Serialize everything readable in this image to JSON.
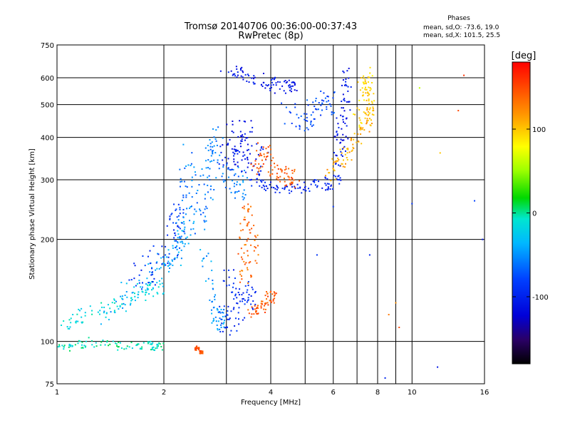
{
  "chart_data": {
    "type": "scatter",
    "title": "Tromsø 20140706 00:36:00-00:37:43",
    "subtitle": "RwPretec (8p)",
    "xlabel": "Frequency [MHz]",
    "ylabel": "Stationary phase Virtual Height [km]",
    "xscale": "log",
    "yscale": "log",
    "xlim": [
      1,
      16
    ],
    "ylim": [
      75,
      750
    ],
    "xticks": [
      1,
      2,
      4,
      6,
      8,
      10,
      16
    ],
    "xgrid": [
      2,
      3,
      4,
      5,
      6,
      7,
      8,
      9,
      10
    ],
    "yticks": [
      75,
      100,
      200,
      300,
      400,
      500,
      600,
      750
    ],
    "grid": true,
    "stats": {
      "header": "Phases",
      "line1": "mean, sd,O: -73.6, 19.0",
      "line2": "mean, sd,X: 101.5, 25.5"
    },
    "colorbar": {
      "label": "[deg]",
      "range": [
        -180,
        180
      ],
      "ticks": [
        {
          "value": 100,
          "label": "100"
        },
        {
          "value": 0,
          "label": "0"
        },
        {
          "value": -100,
          "label": "-100"
        }
      ]
    },
    "series": [
      {
        "phase": -10,
        "spread_f": 0.05,
        "spread_h": 0.03,
        "points": [
          [
            1.0,
            95
          ],
          [
            1.1,
            96
          ],
          [
            1.2,
            100
          ],
          [
            1.4,
            98
          ],
          [
            1.6,
            96
          ],
          [
            1.7,
            98
          ],
          [
            1.9,
            97
          ]
        ]
      },
      {
        "phase": -20,
        "spread_f": 0.06,
        "spread_h": 0.05,
        "points": [
          [
            1.05,
            112
          ],
          [
            1.15,
            116
          ],
          [
            1.3,
            122
          ],
          [
            1.45,
            126
          ],
          [
            1.6,
            132
          ],
          [
            1.75,
            140
          ],
          [
            1.9,
            145
          ]
        ]
      },
      {
        "phase": -45,
        "spread_f": 0.06,
        "spread_h": 0.08,
        "points": [
          [
            1.4,
            120
          ],
          [
            1.6,
            140
          ],
          [
            1.8,
            150
          ],
          [
            1.95,
            165
          ],
          [
            2.1,
            175
          ],
          [
            2.2,
            190
          ],
          [
            2.3,
            210
          ]
        ]
      },
      {
        "phase": -90,
        "spread_f": 0.05,
        "spread_h": 0.1,
        "points": [
          [
            1.6,
            150
          ],
          [
            1.8,
            160
          ],
          [
            1.95,
            180
          ],
          [
            2.1,
            190
          ],
          [
            2.2,
            230
          ]
        ]
      },
      {
        "phase": -60,
        "spread_f": 0.03,
        "spread_h": 0.2,
        "points": [
          [
            2.2,
            180
          ],
          [
            2.25,
            250
          ],
          [
            2.3,
            320
          ],
          [
            2.4,
            280
          ],
          [
            2.5,
            230
          ],
          [
            2.6,
            270
          ],
          [
            2.7,
            320
          ]
        ]
      },
      {
        "phase": -60,
        "spread_f": 0.04,
        "spread_h": 0.1,
        "points": [
          [
            2.7,
            350
          ],
          [
            2.75,
            400
          ],
          [
            2.9,
            330
          ],
          [
            3.1,
            300
          ],
          [
            3.3,
            290
          ]
        ]
      },
      {
        "phase": -50,
        "spread_f": 0.03,
        "spread_h": 0.08,
        "points": [
          [
            2.6,
            180
          ],
          [
            2.7,
            140
          ],
          [
            2.8,
            120
          ],
          [
            2.9,
            115
          ]
        ]
      },
      {
        "phase": -110,
        "spread_f": 0.08,
        "spread_h": 0.12,
        "points": [
          [
            2.9,
            330
          ],
          [
            3.1,
            350
          ],
          [
            3.3,
            360
          ],
          [
            3.5,
            340
          ],
          [
            3.7,
            330
          ],
          [
            3.0,
            380
          ],
          [
            3.3,
            400
          ]
        ]
      },
      {
        "phase": -100,
        "spread_f": 0.05,
        "spread_h": 0.04,
        "points": [
          [
            3.5,
            300
          ],
          [
            3.8,
            290
          ],
          [
            4.1,
            285
          ],
          [
            4.5,
            282
          ],
          [
            5.0,
            285
          ],
          [
            5.5,
            290
          ],
          [
            6.0,
            297
          ]
        ]
      },
      {
        "phase": -95,
        "spread_f": 0.05,
        "spread_h": 0.1,
        "points": [
          [
            3.0,
            160
          ],
          [
            3.2,
            145
          ],
          [
            3.4,
            130
          ],
          [
            3.5,
            140
          ],
          [
            3.2,
            120
          ],
          [
            3.0,
            115
          ]
        ]
      },
      {
        "phase": 135,
        "spread_f": 0.04,
        "spread_h": 0.08,
        "points": [
          [
            3.3,
            180
          ],
          [
            3.4,
            220
          ],
          [
            3.5,
            240
          ],
          [
            3.6,
            200
          ],
          [
            3.4,
            160
          ]
        ]
      },
      {
        "phase": 145,
        "spread_f": 0.04,
        "spread_h": 0.04,
        "points": [
          [
            3.5,
            122
          ],
          [
            3.7,
            125
          ],
          [
            3.9,
            130
          ],
          [
            4.0,
            135
          ]
        ]
      },
      {
        "phase": 145,
        "spread_f": 0.05,
        "spread_h": 0.07,
        "points": [
          [
            3.6,
            330
          ],
          [
            3.8,
            360
          ],
          [
            3.9,
            340
          ],
          [
            4.1,
            320
          ],
          [
            4.3,
            310
          ],
          [
            4.6,
            305
          ]
        ]
      },
      {
        "phase": -110,
        "spread_f": 0.04,
        "spread_h": 0.05,
        "points": [
          [
            3.0,
            630
          ],
          [
            3.3,
            620
          ],
          [
            3.6,
            600
          ],
          [
            3.9,
            580
          ],
          [
            4.2,
            565
          ],
          [
            4.6,
            560
          ]
        ]
      },
      {
        "phase": -80,
        "spread_f": 0.05,
        "spread_h": 0.08,
        "points": [
          [
            4.5,
            470
          ],
          [
            4.8,
            450
          ],
          [
            5.2,
            470
          ],
          [
            5.5,
            490
          ],
          [
            5.8,
            510
          ]
        ]
      },
      {
        "phase": 110,
        "spread_f": 0.03,
        "spread_h": 0.06,
        "points": [
          [
            5.8,
            310
          ],
          [
            6.1,
            330
          ],
          [
            6.4,
            350
          ],
          [
            6.8,
            380
          ],
          [
            7.2,
            420
          ],
          [
            7.6,
            460
          ]
        ]
      },
      {
        "phase": -110,
        "spread_f": 0.03,
        "spread_h": 0.15,
        "points": [
          [
            6.3,
            400
          ],
          [
            6.5,
            500
          ],
          [
            6.6,
            560
          ],
          [
            6.4,
            450
          ],
          [
            6.2,
            380
          ]
        ]
      },
      {
        "phase": 95,
        "spread_f": 0.03,
        "spread_h": 0.12,
        "points": [
          [
            7.0,
            450
          ],
          [
            7.2,
            520
          ],
          [
            7.4,
            600
          ],
          [
            7.5,
            560
          ],
          [
            7.6,
            500
          ]
        ]
      },
      {
        "phase": 150,
        "spread_f": 0.01,
        "spread_h": 0.01,
        "points": [
          [
            2.5,
            95
          ],
          [
            2.45,
            96
          ],
          [
            2.55,
            93
          ]
        ]
      }
    ],
    "sparse": [
      {
        "f": 8.6,
        "h": 120,
        "phase": 130
      },
      {
        "f": 9.0,
        "h": 130,
        "phase": 120
      },
      {
        "f": 9.2,
        "h": 110,
        "phase": 150
      },
      {
        "f": 10.5,
        "h": 560,
        "phase": 60
      },
      {
        "f": 12.0,
        "h": 360,
        "phase": 100
      },
      {
        "f": 13.5,
        "h": 480,
        "phase": 150
      },
      {
        "f": 14.0,
        "h": 610,
        "phase": 160
      },
      {
        "f": 15.8,
        "h": 200,
        "phase": -110
      },
      {
        "f": 7.6,
        "h": 180,
        "phase": -100
      },
      {
        "f": 8.4,
        "h": 78,
        "phase": -100
      },
      {
        "f": 10.0,
        "h": 255,
        "phase": -90
      },
      {
        "f": 11.8,
        "h": 84,
        "phase": -110
      },
      {
        "f": 15.0,
        "h": 260,
        "phase": -80
      },
      {
        "f": 6.0,
        "h": 250,
        "phase": -90
      },
      {
        "f": 5.4,
        "h": 180,
        "phase": -90
      }
    ]
  }
}
